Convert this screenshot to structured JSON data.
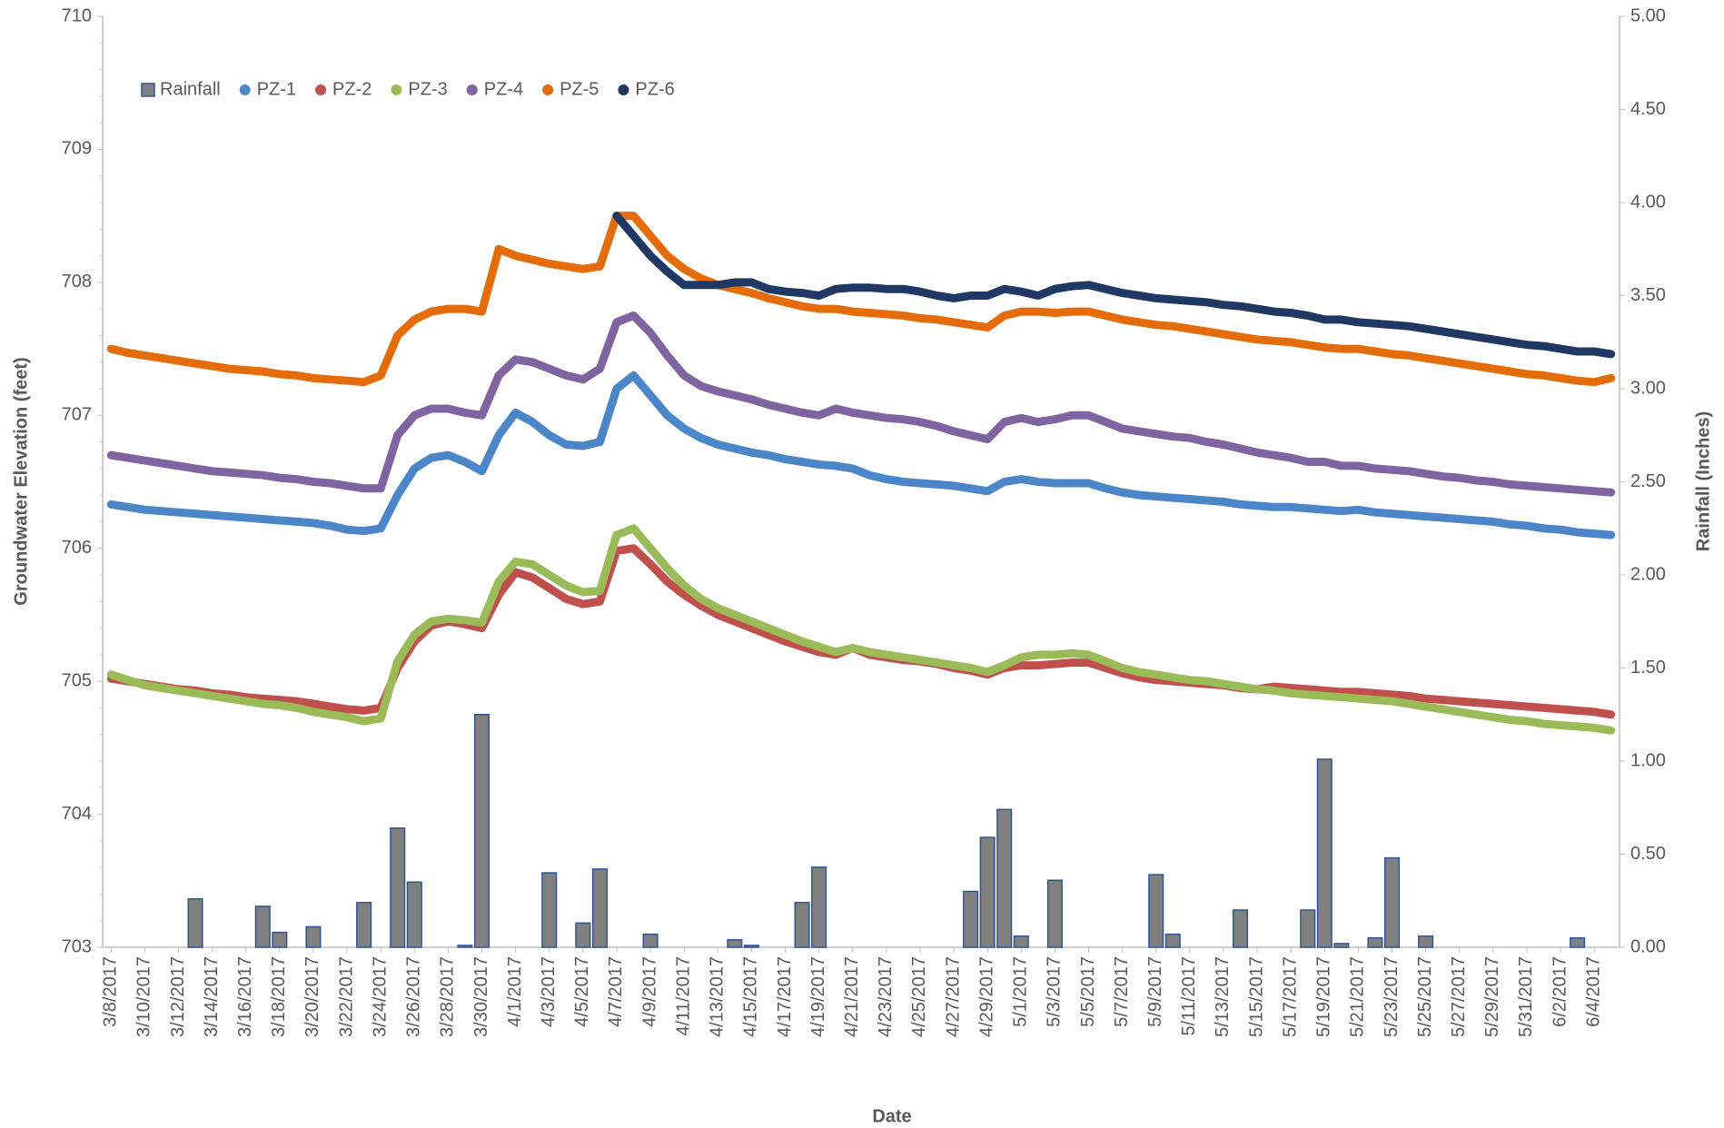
{
  "chart_data": {
    "type": "combo",
    "x_label": "Date",
    "y_label": "Groundwater Elevation (feet)",
    "y2_label": "Rainfall (Inches)",
    "x": [
      "3/8/2017",
      "3/9/2017",
      "3/10/2017",
      "3/11/2017",
      "3/12/2017",
      "3/13/2017",
      "3/14/2017",
      "3/15/2017",
      "3/16/2017",
      "3/17/2017",
      "3/18/2017",
      "3/19/2017",
      "3/20/2017",
      "3/21/2017",
      "3/22/2017",
      "3/23/2017",
      "3/24/2017",
      "3/25/2017",
      "3/26/2017",
      "3/27/2017",
      "3/28/2017",
      "3/29/2017",
      "3/30/2017",
      "3/31/2017",
      "4/1/2017",
      "4/2/2017",
      "4/3/2017",
      "4/4/2017",
      "4/5/2017",
      "4/6/2017",
      "4/7/2017",
      "4/8/2017",
      "4/9/2017",
      "4/10/2017",
      "4/11/2017",
      "4/12/2017",
      "4/13/2017",
      "4/14/2017",
      "4/15/2017",
      "4/16/2017",
      "4/17/2017",
      "4/18/2017",
      "4/19/2017",
      "4/20/2017",
      "4/21/2017",
      "4/22/2017",
      "4/23/2017",
      "4/24/2017",
      "4/25/2017",
      "4/26/2017",
      "4/27/2017",
      "4/28/2017",
      "4/29/2017",
      "4/30/2017",
      "5/1/2017",
      "5/2/2017",
      "5/3/2017",
      "5/4/2017",
      "5/5/2017",
      "5/6/2017",
      "5/7/2017",
      "5/8/2017",
      "5/9/2017",
      "5/10/2017",
      "5/11/2017",
      "5/12/2017",
      "5/13/2017",
      "5/14/2017",
      "5/15/2017",
      "5/16/2017",
      "5/17/2017",
      "5/18/2017",
      "5/19/2017",
      "5/20/2017",
      "5/21/2017",
      "5/22/2017",
      "5/23/2017",
      "5/24/2017",
      "5/25/2017",
      "5/26/2017",
      "5/27/2017",
      "5/28/2017",
      "5/29/2017",
      "5/30/2017",
      "5/31/2017",
      "6/1/2017",
      "6/2/2017",
      "6/3/2017",
      "6/4/2017",
      "6/5/2017"
    ],
    "ylim": [
      703,
      710
    ],
    "yticks": [
      703,
      704,
      705,
      706,
      707,
      708,
      709,
      710
    ],
    "y2lim": [
      0,
      5
    ],
    "y2ticks": [
      {
        "value": 0,
        "label": "0.00"
      },
      {
        "value": 0.5,
        "label": "0.50"
      },
      {
        "value": 1,
        "label": "1.00"
      },
      {
        "value": 1.5,
        "label": "1.50"
      },
      {
        "value": 2,
        "label": "2.00"
      },
      {
        "value": 2.5,
        "label": "2.50"
      },
      {
        "value": 3,
        "label": "3.00"
      },
      {
        "value": 3.5,
        "label": "3.50"
      },
      {
        "value": 4,
        "label": "4.00"
      },
      {
        "value": 4.5,
        "label": "4.50"
      },
      {
        "value": 5,
        "label": "5.00"
      }
    ],
    "legend": "top-left",
    "series": [
      {
        "name": "Rainfall",
        "type": "bar",
        "axis": "y2",
        "color": "#808080",
        "edge_color": "#2f5597",
        "values": [
          0,
          0,
          0,
          0,
          0,
          0.26,
          0,
          0,
          0,
          0.22,
          0.08,
          0,
          0.11,
          0,
          0,
          0.24,
          0,
          0.64,
          0.35,
          0,
          0,
          0.01,
          1.25,
          0,
          0,
          0,
          0.4,
          0,
          0.13,
          0.42,
          0,
          0,
          0.07,
          0,
          0,
          0,
          0,
          0.04,
          0.01,
          0,
          0,
          0.24,
          0.43,
          0,
          0,
          0,
          0,
          0,
          0,
          0,
          0,
          0.3,
          0.59,
          0.74,
          0.06,
          0,
          0.36,
          0,
          0,
          0,
          0,
          0,
          0.39,
          0.07,
          0,
          0,
          0,
          0.2,
          0,
          0,
          0,
          0.2,
          1.01,
          0.02,
          0,
          0.05,
          0.48,
          0,
          0.06,
          0,
          0,
          0,
          0,
          0,
          0,
          0,
          0,
          0.05,
          0,
          0
        ]
      },
      {
        "name": "PZ-1",
        "type": "line",
        "color": "#4a86c8",
        "values": [
          706.33,
          706.31,
          706.29,
          706.28,
          706.27,
          706.26,
          706.25,
          706.24,
          706.23,
          706.22,
          706.21,
          706.2,
          706.19,
          706.17,
          706.14,
          706.13,
          706.15,
          706.4,
          706.6,
          706.68,
          706.7,
          706.65,
          706.58,
          706.85,
          707.02,
          706.95,
          706.85,
          706.78,
          706.77,
          706.8,
          707.2,
          707.3,
          707.15,
          707.0,
          706.9,
          706.83,
          706.78,
          706.75,
          706.72,
          706.7,
          706.67,
          706.65,
          706.63,
          706.62,
          706.6,
          706.55,
          706.52,
          706.5,
          706.49,
          706.48,
          706.47,
          706.45,
          706.43,
          706.5,
          706.52,
          706.5,
          706.49,
          706.49,
          706.49,
          706.45,
          706.42,
          706.4,
          706.39,
          706.38,
          706.37,
          706.36,
          706.35,
          706.33,
          706.32,
          706.31,
          706.31,
          706.3,
          706.29,
          706.28,
          706.29,
          706.27,
          706.26,
          706.25,
          706.24,
          706.23,
          706.22,
          706.21,
          706.2,
          706.18,
          706.17,
          706.15,
          706.14,
          706.12,
          706.11,
          706.1
        ]
      },
      {
        "name": "PZ-2",
        "type": "line",
        "color": "#c0504d",
        "values": [
          705.02,
          705.0,
          704.98,
          704.96,
          704.94,
          704.93,
          704.91,
          704.9,
          704.88,
          704.87,
          704.86,
          704.85,
          704.83,
          704.81,
          704.79,
          704.78,
          704.8,
          705.1,
          705.3,
          705.42,
          705.45,
          705.43,
          705.4,
          705.65,
          705.82,
          705.78,
          705.7,
          705.62,
          705.58,
          705.6,
          705.98,
          706.0,
          705.88,
          705.75,
          705.65,
          705.57,
          705.5,
          705.45,
          705.4,
          705.35,
          705.3,
          705.26,
          705.22,
          705.2,
          705.25,
          705.2,
          705.18,
          705.16,
          705.15,
          705.13,
          705.1,
          705.08,
          705.05,
          705.1,
          705.12,
          705.12,
          705.13,
          705.14,
          705.14,
          705.1,
          705.06,
          705.03,
          705.01,
          705.0,
          704.99,
          704.98,
          704.97,
          704.95,
          704.94,
          704.96,
          704.95,
          704.94,
          704.93,
          704.92,
          704.92,
          704.91,
          704.9,
          704.89,
          704.87,
          704.86,
          704.85,
          704.84,
          704.83,
          704.82,
          704.81,
          704.8,
          704.79,
          704.78,
          704.77,
          704.75
        ]
      },
      {
        "name": "PZ-3",
        "type": "line",
        "color": "#9bbb59",
        "values": [
          705.05,
          705.01,
          704.97,
          704.95,
          704.93,
          704.91,
          704.89,
          704.87,
          704.85,
          704.83,
          704.82,
          704.8,
          704.77,
          704.75,
          704.73,
          704.7,
          704.72,
          705.15,
          705.35,
          705.45,
          705.47,
          705.46,
          705.44,
          705.75,
          705.9,
          705.88,
          705.8,
          705.72,
          705.67,
          705.68,
          706.1,
          706.15,
          706.0,
          705.85,
          705.72,
          705.62,
          705.55,
          705.5,
          705.45,
          705.4,
          705.35,
          705.3,
          705.26,
          705.22,
          705.25,
          705.22,
          705.2,
          705.18,
          705.16,
          705.14,
          705.12,
          705.1,
          705.07,
          705.12,
          705.18,
          705.2,
          705.2,
          705.21,
          705.2,
          705.15,
          705.1,
          705.07,
          705.05,
          705.03,
          705.01,
          705.0,
          704.98,
          704.96,
          704.94,
          704.93,
          704.91,
          704.9,
          704.89,
          704.88,
          704.87,
          704.86,
          704.85,
          704.83,
          704.81,
          704.79,
          704.77,
          704.75,
          704.73,
          704.71,
          704.7,
          704.68,
          704.67,
          704.66,
          704.65,
          704.63
        ]
      },
      {
        "name": "PZ-4",
        "type": "line",
        "color": "#8064a2",
        "values": [
          706.7,
          706.68,
          706.66,
          706.64,
          706.62,
          706.6,
          706.58,
          706.57,
          706.56,
          706.55,
          706.53,
          706.52,
          706.5,
          706.49,
          706.47,
          706.45,
          706.45,
          706.85,
          707.0,
          707.05,
          707.05,
          707.02,
          707.0,
          707.3,
          707.42,
          707.4,
          707.35,
          707.3,
          707.27,
          707.35,
          707.7,
          707.75,
          707.62,
          707.45,
          707.3,
          707.22,
          707.18,
          707.15,
          707.12,
          707.08,
          707.05,
          707.02,
          707.0,
          707.05,
          707.02,
          707.0,
          706.98,
          706.97,
          706.95,
          706.92,
          706.88,
          706.85,
          706.82,
          706.95,
          706.98,
          706.95,
          706.97,
          707.0,
          707.0,
          706.95,
          706.9,
          706.88,
          706.86,
          706.84,
          706.83,
          706.8,
          706.78,
          706.75,
          706.72,
          706.7,
          706.68,
          706.65,
          706.65,
          706.62,
          706.62,
          706.6,
          706.59,
          706.58,
          706.56,
          706.54,
          706.53,
          706.51,
          706.5,
          706.48,
          706.47,
          706.46,
          706.45,
          706.44,
          706.43,
          706.42
        ]
      },
      {
        "name": "PZ-5",
        "type": "line",
        "color": "#e46c0a",
        "values": [
          707.5,
          707.47,
          707.45,
          707.43,
          707.41,
          707.39,
          707.37,
          707.35,
          707.34,
          707.33,
          707.31,
          707.3,
          707.28,
          707.27,
          707.26,
          707.25,
          707.3,
          707.6,
          707.72,
          707.78,
          707.8,
          707.8,
          707.78,
          708.25,
          708.2,
          708.17,
          708.14,
          708.12,
          708.1,
          708.12,
          708.5,
          708.5,
          708.35,
          708.2,
          708.1,
          708.03,
          707.98,
          707.95,
          707.92,
          707.88,
          707.85,
          707.82,
          707.8,
          707.8,
          707.78,
          707.77,
          707.76,
          707.75,
          707.73,
          707.72,
          707.7,
          707.68,
          707.66,
          707.75,
          707.78,
          707.78,
          707.77,
          707.78,
          707.78,
          707.75,
          707.72,
          707.7,
          707.68,
          707.67,
          707.65,
          707.63,
          707.61,
          707.59,
          707.57,
          707.56,
          707.55,
          707.53,
          707.51,
          707.5,
          707.5,
          707.48,
          707.46,
          707.45,
          707.43,
          707.41,
          707.39,
          707.37,
          707.35,
          707.33,
          707.31,
          707.3,
          707.28,
          707.26,
          707.25,
          707.28
        ]
      },
      {
        "name": "PZ-6",
        "type": "line",
        "color": "#1f3864",
        "values": [
          null,
          null,
          null,
          null,
          null,
          null,
          null,
          null,
          null,
          null,
          null,
          null,
          null,
          null,
          null,
          null,
          null,
          null,
          null,
          null,
          null,
          null,
          null,
          null,
          null,
          null,
          null,
          null,
          null,
          null,
          708.5,
          708.35,
          708.2,
          708.08,
          707.98,
          707.98,
          707.98,
          708.0,
          708.0,
          707.95,
          707.93,
          707.92,
          707.9,
          707.95,
          707.96,
          707.96,
          707.95,
          707.95,
          707.93,
          707.9,
          707.88,
          707.9,
          707.9,
          707.95,
          707.93,
          707.9,
          707.95,
          707.97,
          707.98,
          707.95,
          707.92,
          707.9,
          707.88,
          707.87,
          707.86,
          707.85,
          707.83,
          707.82,
          707.8,
          707.78,
          707.77,
          707.75,
          707.72,
          707.72,
          707.7,
          707.69,
          707.68,
          707.67,
          707.65,
          707.63,
          707.61,
          707.59,
          707.57,
          707.55,
          707.53,
          707.52,
          707.5,
          707.48,
          707.48,
          707.46
        ]
      }
    ]
  }
}
